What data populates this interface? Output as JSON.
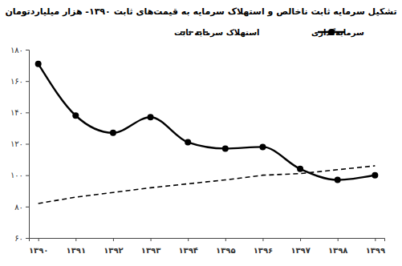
{
  "chart_data": {
    "type": "line",
    "title": "تشکیل سرمایه ثابت ناخالص و استهلاک سرمایه به قیمت‌های ثابت ۱۳۹۰- هزار میلیاردتومان",
    "categories": [
      "۱۳۹۰",
      "۱۳۹۱",
      "۱۳۹۲",
      "۱۳۹۳",
      "۱۳۹۴",
      "۱۳۹۵",
      "۱۳۹۶",
      "۱۳۹۷",
      "۱۳۹۸",
      "۱۳۹۹"
    ],
    "series": [
      {
        "name": "سرمایه‌گذاری",
        "color": "#000000",
        "marker": "circle",
        "line_style": "solid",
        "values": [
          171,
          138,
          127,
          137,
          121,
          117,
          118,
          104,
          97,
          100
        ]
      },
      {
        "name": "استهلاک سرمایه ثابت",
        "color": "#000000",
        "marker": "none",
        "line_style": "dashed",
        "values": [
          82,
          86,
          89,
          92,
          94.5,
          97,
          100,
          101,
          103.5,
          106
        ]
      }
    ],
    "ylim": [
      60,
      180
    ],
    "yticks": [
      {
        "value": 60,
        "label": "۶۰"
      },
      {
        "value": 80,
        "label": "۸۰"
      },
      {
        "value": 100,
        "label": "۱۰۰"
      },
      {
        "value": 120,
        "label": "۱۲۰"
      },
      {
        "value": 140,
        "label": "۱۴۰"
      },
      {
        "value": 160,
        "label": "۱۶۰"
      },
      {
        "value": 180,
        "label": "۱۸۰"
      }
    ],
    "grid": false,
    "legend": "top"
  }
}
